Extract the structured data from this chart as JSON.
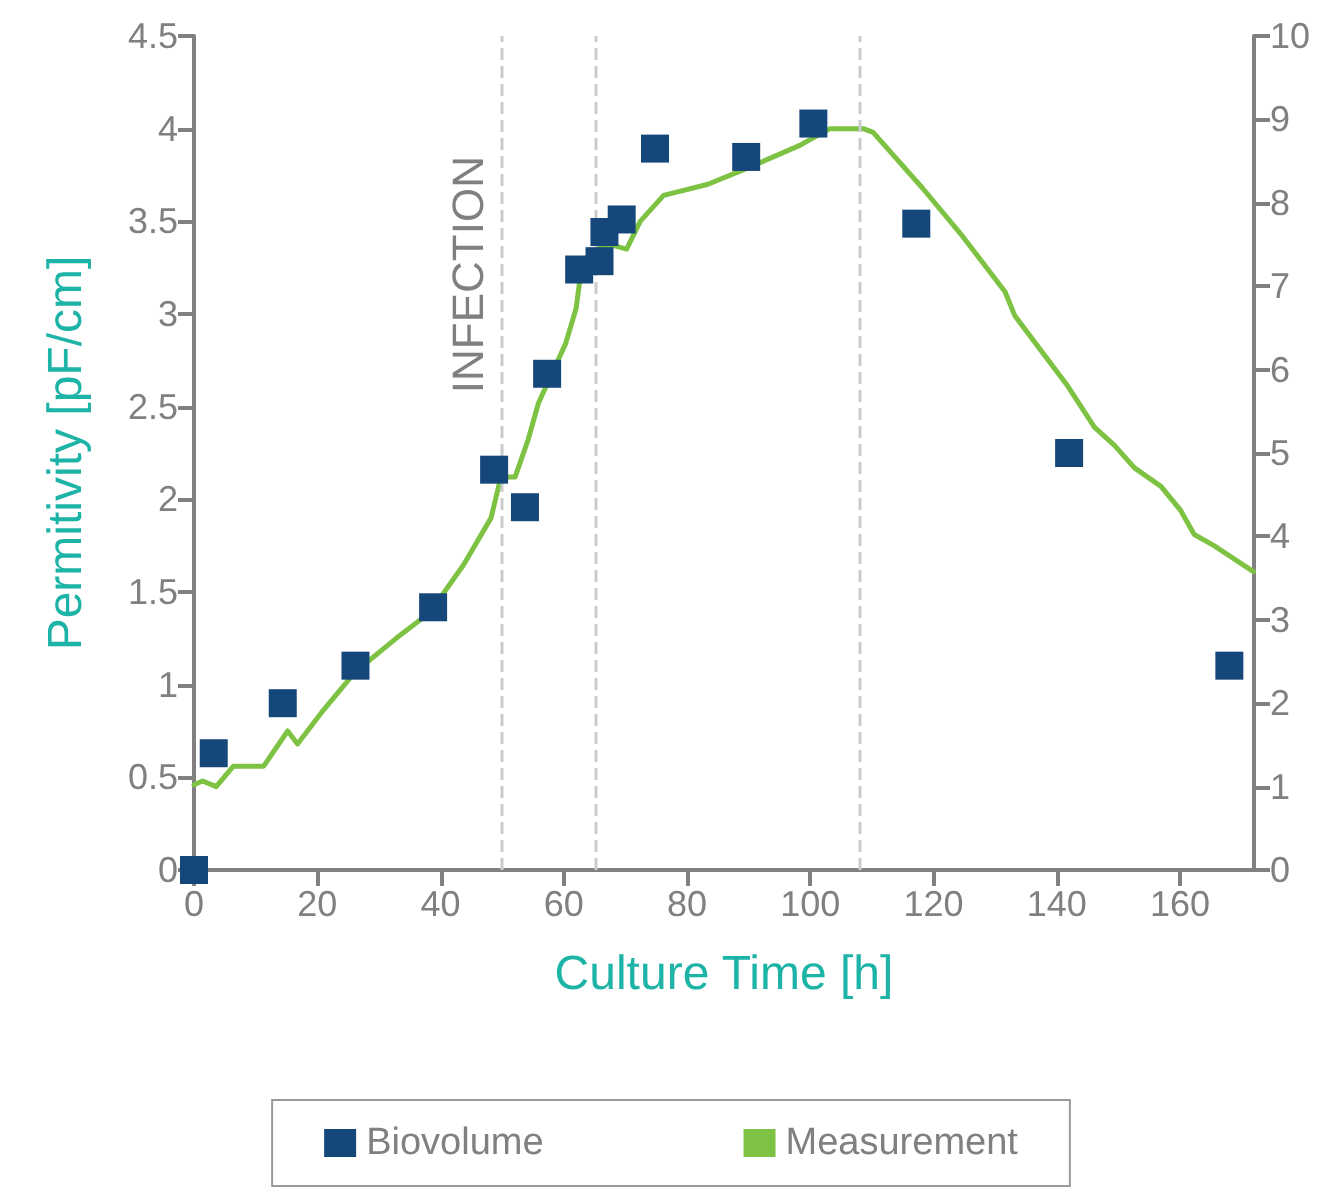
{
  "chart_data": {
    "type": "line",
    "xlabel": "Culture Time [h]",
    "ylabel": "Permitivity [pF/cm]",
    "xlim": [
      0,
      172
    ],
    "xticks": [
      0,
      20,
      40,
      60,
      80,
      100,
      120,
      140,
      160
    ],
    "ylim": [
      0,
      4.5
    ],
    "yticks": [
      0,
      0.5,
      1,
      1.5,
      2,
      2.5,
      3,
      3.5,
      4,
      4.5
    ],
    "y2lim": [
      0,
      10
    ],
    "y2ticks": [
      0,
      1,
      2,
      3,
      4,
      5,
      6,
      7,
      8,
      9,
      10
    ],
    "legend": "bottom",
    "grid": false,
    "ref_lines": [
      {
        "axis": "x",
        "value": 50,
        "label": "INFECTION",
        "color": "#cccccc",
        "line_style": "dashed"
      },
      {
        "axis": "x",
        "value": 65,
        "color": "#cccccc",
        "line_style": "dashed"
      },
      {
        "axis": "x",
        "value": 108,
        "color": "#cccccc",
        "line_style": "dashed"
      }
    ],
    "series": [
      {
        "name": "Biovolume",
        "type": "scatter",
        "axis": "y2",
        "marker": "square",
        "color": "#15477a",
        "x": [
          0,
          3.2,
          14.4,
          26.2,
          38.8,
          48.7,
          53.7,
          57.3,
          62.5,
          65.8,
          66.6,
          69.4,
          74.8,
          89.6,
          100.5,
          117.2,
          142,
          168
        ],
        "values": [
          0,
          1.4,
          2.0,
          2.45,
          3.15,
          4.8,
          4.35,
          5.95,
          7.2,
          7.3,
          7.65,
          7.8,
          8.65,
          8.55,
          8.95,
          7.75,
          5.0,
          2.45
        ]
      },
      {
        "name": "Measurement",
        "marker": "none",
        "color": "#7dc242",
        "x": [
          0,
          1.4,
          3.6,
          6.4,
          11.3,
          15.2,
          16.8,
          20.7,
          26.2,
          32.8,
          38.3,
          43.8,
          48.2,
          49.8,
          52.1,
          54.2,
          55.9,
          60.3,
          62,
          63,
          65.8,
          68,
          70.2,
          72.4,
          76.2,
          83.4,
          90,
          98.3,
          103.2,
          108.6,
          110.2,
          118.2,
          124.7,
          131.6,
          133.2,
          141.8,
          146.1,
          149.4,
          152.6,
          156.9,
          160.1,
          162.3,
          165.5,
          171.9
        ],
        "values": [
          0.46,
          0.48,
          0.45,
          0.56,
          0.56,
          0.75,
          0.68,
          0.85,
          1.07,
          1.25,
          1.39,
          1.65,
          1.9,
          2.12,
          2.12,
          2.32,
          2.52,
          2.84,
          3.03,
          3.28,
          3.37,
          3.37,
          3.35,
          3.5,
          3.64,
          3.7,
          3.79,
          3.91,
          4.0,
          4.0,
          3.98,
          3.68,
          3.42,
          3.12,
          2.99,
          2.61,
          2.39,
          2.29,
          2.17,
          2.07,
          1.94,
          1.81,
          1.75,
          1.61
        ]
      }
    ]
  }
}
